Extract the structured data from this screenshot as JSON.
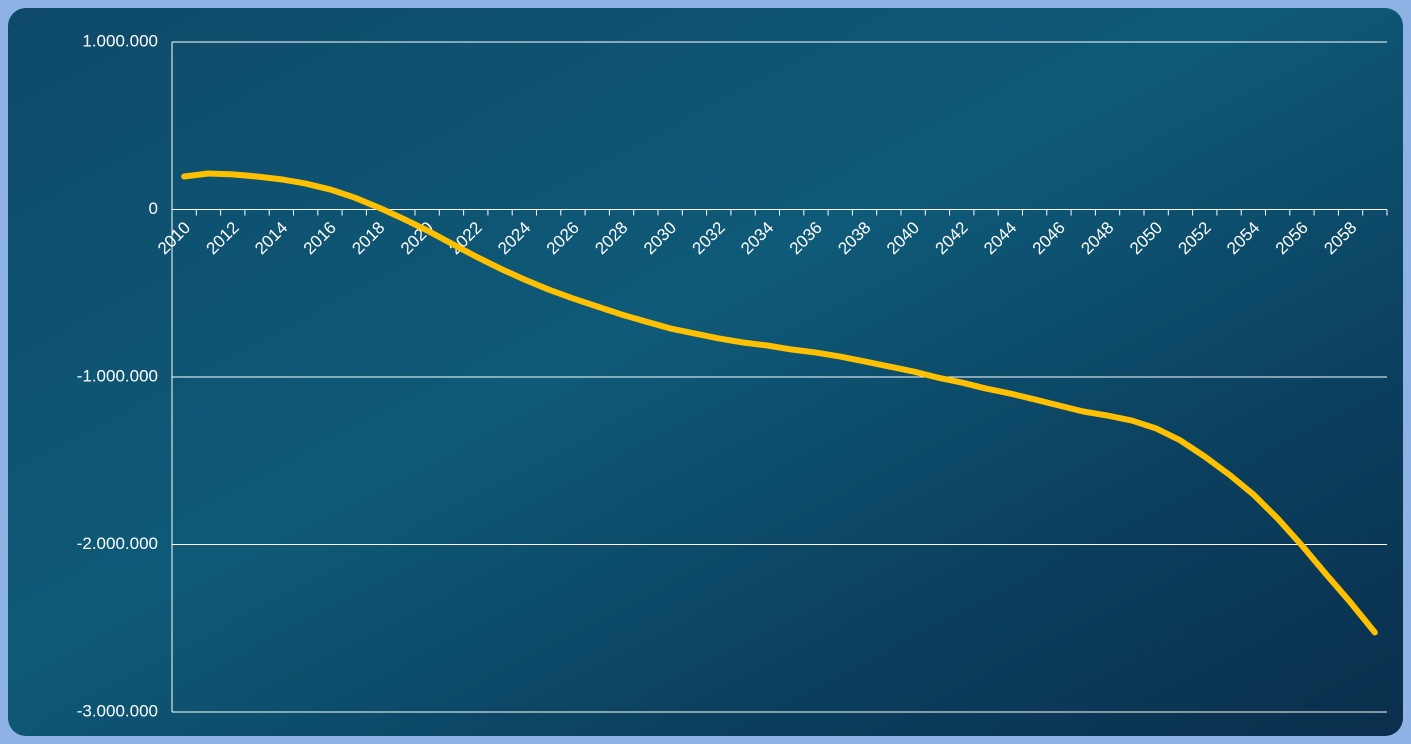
{
  "chart_data": {
    "type": "line",
    "categories": [
      "2010",
      null,
      "2012",
      null,
      "2014",
      null,
      "2016",
      null,
      "2018",
      null,
      "2020",
      null,
      "2022",
      null,
      "2024",
      null,
      "2026",
      null,
      "2028",
      null,
      "2030",
      null,
      "2032",
      null,
      "2034",
      null,
      "2036",
      null,
      "2038",
      null,
      "2040",
      null,
      "2042",
      null,
      "2044",
      null,
      "2046",
      null,
      "2048",
      null,
      "2050",
      null,
      "2052",
      null,
      "2054",
      null,
      "2056",
      null,
      "2058",
      null
    ],
    "values": [
      197000,
      215000,
      210000,
      197000,
      180000,
      155000,
      120000,
      72000,
      12000,
      -54000,
      -125000,
      -203000,
      -280000,
      -352000,
      -418000,
      -478000,
      -531000,
      -579000,
      -627000,
      -669000,
      -710000,
      -740000,
      -770000,
      -794000,
      -812000,
      -836000,
      -854000,
      -878000,
      -907000,
      -937000,
      -967000,
      -1003000,
      -1033000,
      -1069000,
      -1099000,
      -1134000,
      -1170000,
      -1206000,
      -1230000,
      -1260000,
      -1307000,
      -1379000,
      -1475000,
      -1582000,
      -1701000,
      -1845000,
      -2006000,
      -2179000,
      -2346000,
      -2525000
    ],
    "color": "#ffc000",
    "ylim": [
      -3000000,
      1000000
    ],
    "yticks": [
      {
        "value": -3000000,
        "label": "-3.000.000"
      },
      {
        "value": -2000000,
        "label": "-2.000.000"
      },
      {
        "value": -1000000,
        "label": "-1.000.000"
      },
      0,
      {
        "value": 1000000,
        "label": "1.000.000"
      }
    ],
    "grid": true
  }
}
